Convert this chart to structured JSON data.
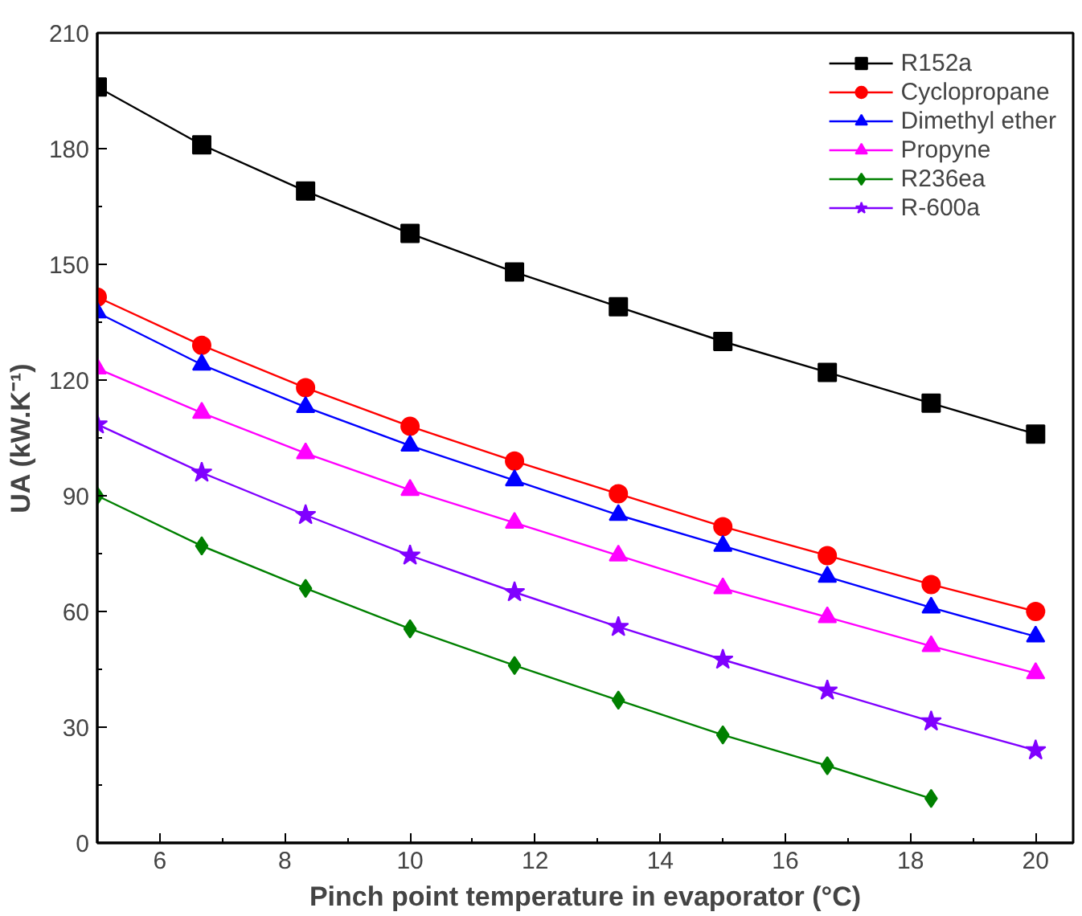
{
  "chart_data": {
    "type": "line",
    "xlabel": "Pinch point temperature in evaporator (°C)",
    "ylabel": "UA (kW.K⁻¹)",
    "x": [
      5,
      6.67,
      8.33,
      10,
      11.67,
      13.33,
      15,
      16.67,
      18.33,
      20
    ],
    "xlim": [
      5,
      20.6
    ],
    "xticks": [
      6,
      8,
      10,
      12,
      14,
      16,
      18,
      20
    ],
    "ylim": [
      0,
      210
    ],
    "yticks": [
      0,
      30,
      60,
      90,
      120,
      150,
      180,
      210
    ],
    "grid": false,
    "legend": "top right",
    "line_style": "solid",
    "series": [
      {
        "name": "R152a",
        "color": "#000000",
        "marker": "square",
        "values": [
          196,
          181,
          169,
          158,
          148,
          139,
          130,
          122,
          114,
          106
        ]
      },
      {
        "name": "Cyclopropane",
        "color": "#ff0000",
        "marker": "circle",
        "values": [
          141.5,
          129,
          118,
          108,
          99,
          90.5,
          82,
          74.5,
          67,
          60
        ]
      },
      {
        "name": "Dimethyl ether",
        "color": "#0000ff",
        "marker": "triangle",
        "values": [
          137.5,
          124,
          113,
          103,
          94,
          85,
          77,
          69,
          61,
          53.5
        ]
      },
      {
        "name": "Propyne",
        "color": "#ff00ff",
        "marker": "triangle",
        "values": [
          123,
          111.5,
          101,
          91.5,
          83,
          74.5,
          66,
          58.5,
          51,
          44
        ]
      },
      {
        "name": "R236ea",
        "color": "#008000",
        "marker": "diamond",
        "values": [
          90,
          77,
          66,
          55.5,
          46,
          37,
          28,
          20,
          11.5,
          null
        ]
      },
      {
        "name": "R-600a",
        "color": "#8000ff",
        "marker": "star",
        "values": [
          108.5,
          96,
          85,
          74.5,
          65,
          56,
          47.5,
          39.5,
          31.5,
          24
        ]
      }
    ]
  }
}
